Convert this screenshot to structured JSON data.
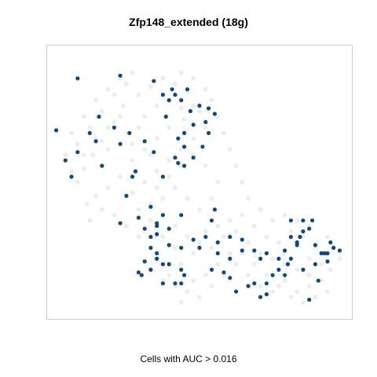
{
  "chart_data": {
    "type": "scatter",
    "title": "Zfp148_extended (18g)",
    "xlabel": "Cells with AUC > 0.016",
    "ylabel": "",
    "axes_visible": false,
    "grid": false,
    "legend": "none",
    "xlim": [
      0,
      100
    ],
    "ylim": [
      0,
      100
    ],
    "colors": {
      "highlight": "#0d4a7e",
      "background": "#ebebeb",
      "frame": "#cccccc"
    },
    "series": [
      {
        "values": [
          [
            10,
            50
          ],
          [
            12,
            55
          ],
          [
            15,
            60
          ],
          [
            18,
            65
          ],
          [
            22,
            72
          ],
          [
            25,
            78
          ],
          [
            30,
            82
          ],
          [
            34,
            85
          ],
          [
            38,
            88
          ],
          [
            42,
            86
          ],
          [
            46,
            83
          ],
          [
            48,
            78
          ],
          [
            45,
            73
          ],
          [
            40,
            70
          ],
          [
            36,
            66
          ],
          [
            32,
            62
          ],
          [
            28,
            58
          ],
          [
            24,
            52
          ],
          [
            20,
            48
          ],
          [
            16,
            45
          ],
          [
            13,
            42
          ],
          [
            20,
            62
          ],
          [
            26,
            68
          ],
          [
            32,
            74
          ],
          [
            36,
            78
          ],
          [
            40,
            80
          ],
          [
            44,
            77
          ],
          [
            50,
            76
          ],
          [
            52,
            70
          ],
          [
            48,
            66
          ],
          [
            44,
            62
          ],
          [
            40,
            58
          ],
          [
            36,
            54
          ],
          [
            32,
            50
          ],
          [
            28,
            46
          ],
          [
            34,
            42
          ],
          [
            38,
            38
          ],
          [
            42,
            34
          ],
          [
            46,
            30
          ],
          [
            50,
            28
          ],
          [
            54,
            26
          ],
          [
            58,
            30
          ],
          [
            62,
            32
          ],
          [
            66,
            28
          ],
          [
            70,
            24
          ],
          [
            74,
            22
          ],
          [
            78,
            20
          ],
          [
            82,
            18
          ],
          [
            86,
            16
          ],
          [
            90,
            20
          ],
          [
            88,
            26
          ],
          [
            84,
            30
          ],
          [
            80,
            32
          ],
          [
            76,
            28
          ],
          [
            72,
            30
          ],
          [
            68,
            34
          ],
          [
            64,
            38
          ],
          [
            60,
            36
          ],
          [
            56,
            34
          ],
          [
            52,
            32
          ],
          [
            48,
            24
          ],
          [
            44,
            20
          ],
          [
            40,
            16
          ],
          [
            42,
            12
          ],
          [
            46,
            10
          ],
          [
            50,
            8
          ],
          [
            54,
            12
          ],
          [
            58,
            16
          ],
          [
            62,
            20
          ],
          [
            66,
            16
          ],
          [
            70,
            12
          ],
          [
            74,
            10
          ],
          [
            78,
            14
          ],
          [
            82,
            10
          ],
          [
            86,
            12
          ],
          [
            90,
            14
          ],
          [
            93,
            18
          ],
          [
            30,
            30
          ],
          [
            26,
            34
          ],
          [
            22,
            38
          ],
          [
            18,
            40
          ],
          [
            14,
            36
          ],
          [
            28,
            90
          ],
          [
            24,
            88
          ],
          [
            20,
            84
          ],
          [
            16,
            80
          ],
          [
            12,
            74
          ],
          [
            8,
            68
          ],
          [
            6,
            60
          ],
          [
            10,
            64
          ],
          [
            14,
            70
          ],
          [
            18,
            76
          ],
          [
            22,
            82
          ],
          [
            26,
            86
          ],
          [
            38,
            44
          ],
          [
            42,
            48
          ],
          [
            46,
            44
          ],
          [
            50,
            40
          ],
          [
            54,
            44
          ],
          [
            56,
            50
          ],
          [
            52,
            56
          ],
          [
            48,
            60
          ],
          [
            44,
            56
          ],
          [
            40,
            52
          ],
          [
            36,
            48
          ],
          [
            30,
            40
          ],
          [
            34,
            36
          ],
          [
            38,
            30
          ],
          [
            42,
            26
          ],
          [
            36,
            22
          ],
          [
            34,
            18
          ],
          [
            38,
            14
          ],
          [
            30,
            70
          ],
          [
            34,
            60
          ],
          [
            28,
            64
          ],
          [
            24,
            74
          ],
          [
            20,
            70
          ],
          [
            16,
            66
          ],
          [
            12,
            60
          ],
          [
            8,
            54
          ],
          [
            44,
            90
          ],
          [
            48,
            88
          ],
          [
            52,
            84
          ],
          [
            54,
            80
          ],
          [
            56,
            74
          ],
          [
            58,
            68
          ],
          [
            60,
            62
          ],
          [
            62,
            56
          ],
          [
            64,
            50
          ],
          [
            66,
            44
          ],
          [
            70,
            40
          ],
          [
            74,
            36
          ],
          [
            78,
            38
          ],
          [
            82,
            36
          ],
          [
            86,
            34
          ],
          [
            92,
            30
          ],
          [
            94,
            26
          ],
          [
            96,
            22
          ],
          [
            60,
            24
          ],
          [
            64,
            24
          ],
          [
            68,
            20
          ],
          [
            72,
            16
          ],
          [
            76,
            12
          ],
          [
            80,
            8
          ],
          [
            84,
            6
          ],
          [
            56,
            20
          ],
          [
            52,
            16
          ],
          [
            48,
            14
          ],
          [
            44,
            6
          ],
          [
            86,
            22
          ],
          [
            90,
            24
          ],
          [
            92,
            10
          ],
          [
            88,
            8
          ]
        ]
      },
      {
        "values": [
          [
            10,
            88
          ],
          [
            24,
            89
          ],
          [
            35,
            87
          ],
          [
            41,
            84
          ],
          [
            46,
            84
          ],
          [
            38,
            82
          ],
          [
            44,
            80
          ],
          [
            50,
            78
          ],
          [
            53,
            77
          ],
          [
            47,
            76
          ],
          [
            55,
            75
          ],
          [
            17,
            74
          ],
          [
            39,
            74
          ],
          [
            48,
            71
          ],
          [
            52,
            72
          ],
          [
            22,
            70
          ],
          [
            3,
            69
          ],
          [
            14,
            68
          ],
          [
            27,
            68
          ],
          [
            45,
            68
          ],
          [
            53,
            68
          ],
          [
            43,
            66
          ],
          [
            16,
            65
          ],
          [
            24,
            64
          ],
          [
            32,
            65
          ],
          [
            45,
            63
          ],
          [
            51,
            63
          ],
          [
            35,
            61
          ],
          [
            42,
            59
          ],
          [
            10,
            61
          ],
          [
            6,
            58
          ],
          [
            48,
            59
          ],
          [
            18,
            56
          ],
          [
            29,
            54
          ],
          [
            8,
            52
          ],
          [
            38,
            52
          ],
          [
            43,
            57
          ],
          [
            45,
            56
          ],
          [
            26,
            45
          ],
          [
            34,
            41
          ],
          [
            38,
            38
          ],
          [
            44,
            38
          ],
          [
            30,
            37
          ],
          [
            32,
            33
          ],
          [
            40,
            33
          ],
          [
            36,
            31
          ],
          [
            34,
            30
          ],
          [
            24,
            35
          ],
          [
            36,
            22
          ],
          [
            32,
            21
          ],
          [
            38,
            20
          ],
          [
            40,
            20
          ],
          [
            44,
            18
          ],
          [
            45,
            16
          ],
          [
            42,
            13
          ],
          [
            44,
            13
          ],
          [
            38,
            13
          ],
          [
            34,
            18
          ],
          [
            30,
            17
          ],
          [
            31,
            16
          ],
          [
            36,
            24
          ],
          [
            34,
            26
          ],
          [
            40,
            27
          ],
          [
            44,
            26
          ],
          [
            50,
            26
          ],
          [
            54,
            18
          ],
          [
            58,
            17
          ],
          [
            60,
            22
          ],
          [
            64,
            25
          ],
          [
            68,
            25
          ],
          [
            60,
            15
          ],
          [
            62,
            10
          ],
          [
            56,
            24
          ],
          [
            66,
            12
          ],
          [
            68,
            13
          ],
          [
            72,
            13
          ],
          [
            70,
            22
          ],
          [
            72,
            24
          ],
          [
            74,
            16
          ],
          [
            76,
            22
          ],
          [
            78,
            25
          ],
          [
            80,
            30
          ],
          [
            82,
            28
          ],
          [
            83,
            30
          ],
          [
            84,
            32
          ],
          [
            86,
            33
          ],
          [
            87,
            36
          ],
          [
            80,
            36
          ],
          [
            84,
            36
          ],
          [
            82,
            27
          ],
          [
            88,
            27
          ],
          [
            90,
            24
          ],
          [
            92,
            24
          ],
          [
            94,
            26
          ],
          [
            96,
            25
          ],
          [
            93,
            28
          ],
          [
            92,
            21
          ],
          [
            88,
            20
          ],
          [
            89,
            14
          ],
          [
            91,
            24
          ],
          [
            84,
            18
          ],
          [
            79,
            20
          ],
          [
            76,
            18
          ],
          [
            78,
            16
          ],
          [
            72,
            9
          ],
          [
            70,
            8
          ],
          [
            86,
            7
          ],
          [
            80,
            22
          ],
          [
            55,
            40
          ],
          [
            54,
            36
          ],
          [
            52,
            30
          ],
          [
            60,
            30
          ],
          [
            64,
            29
          ],
          [
            56,
            28
          ],
          [
            48,
            29
          ],
          [
            36,
            35
          ],
          [
            36,
            34
          ],
          [
            28,
            52
          ],
          [
            40,
            80
          ],
          [
            42,
            82
          ]
        ]
      }
    ]
  }
}
